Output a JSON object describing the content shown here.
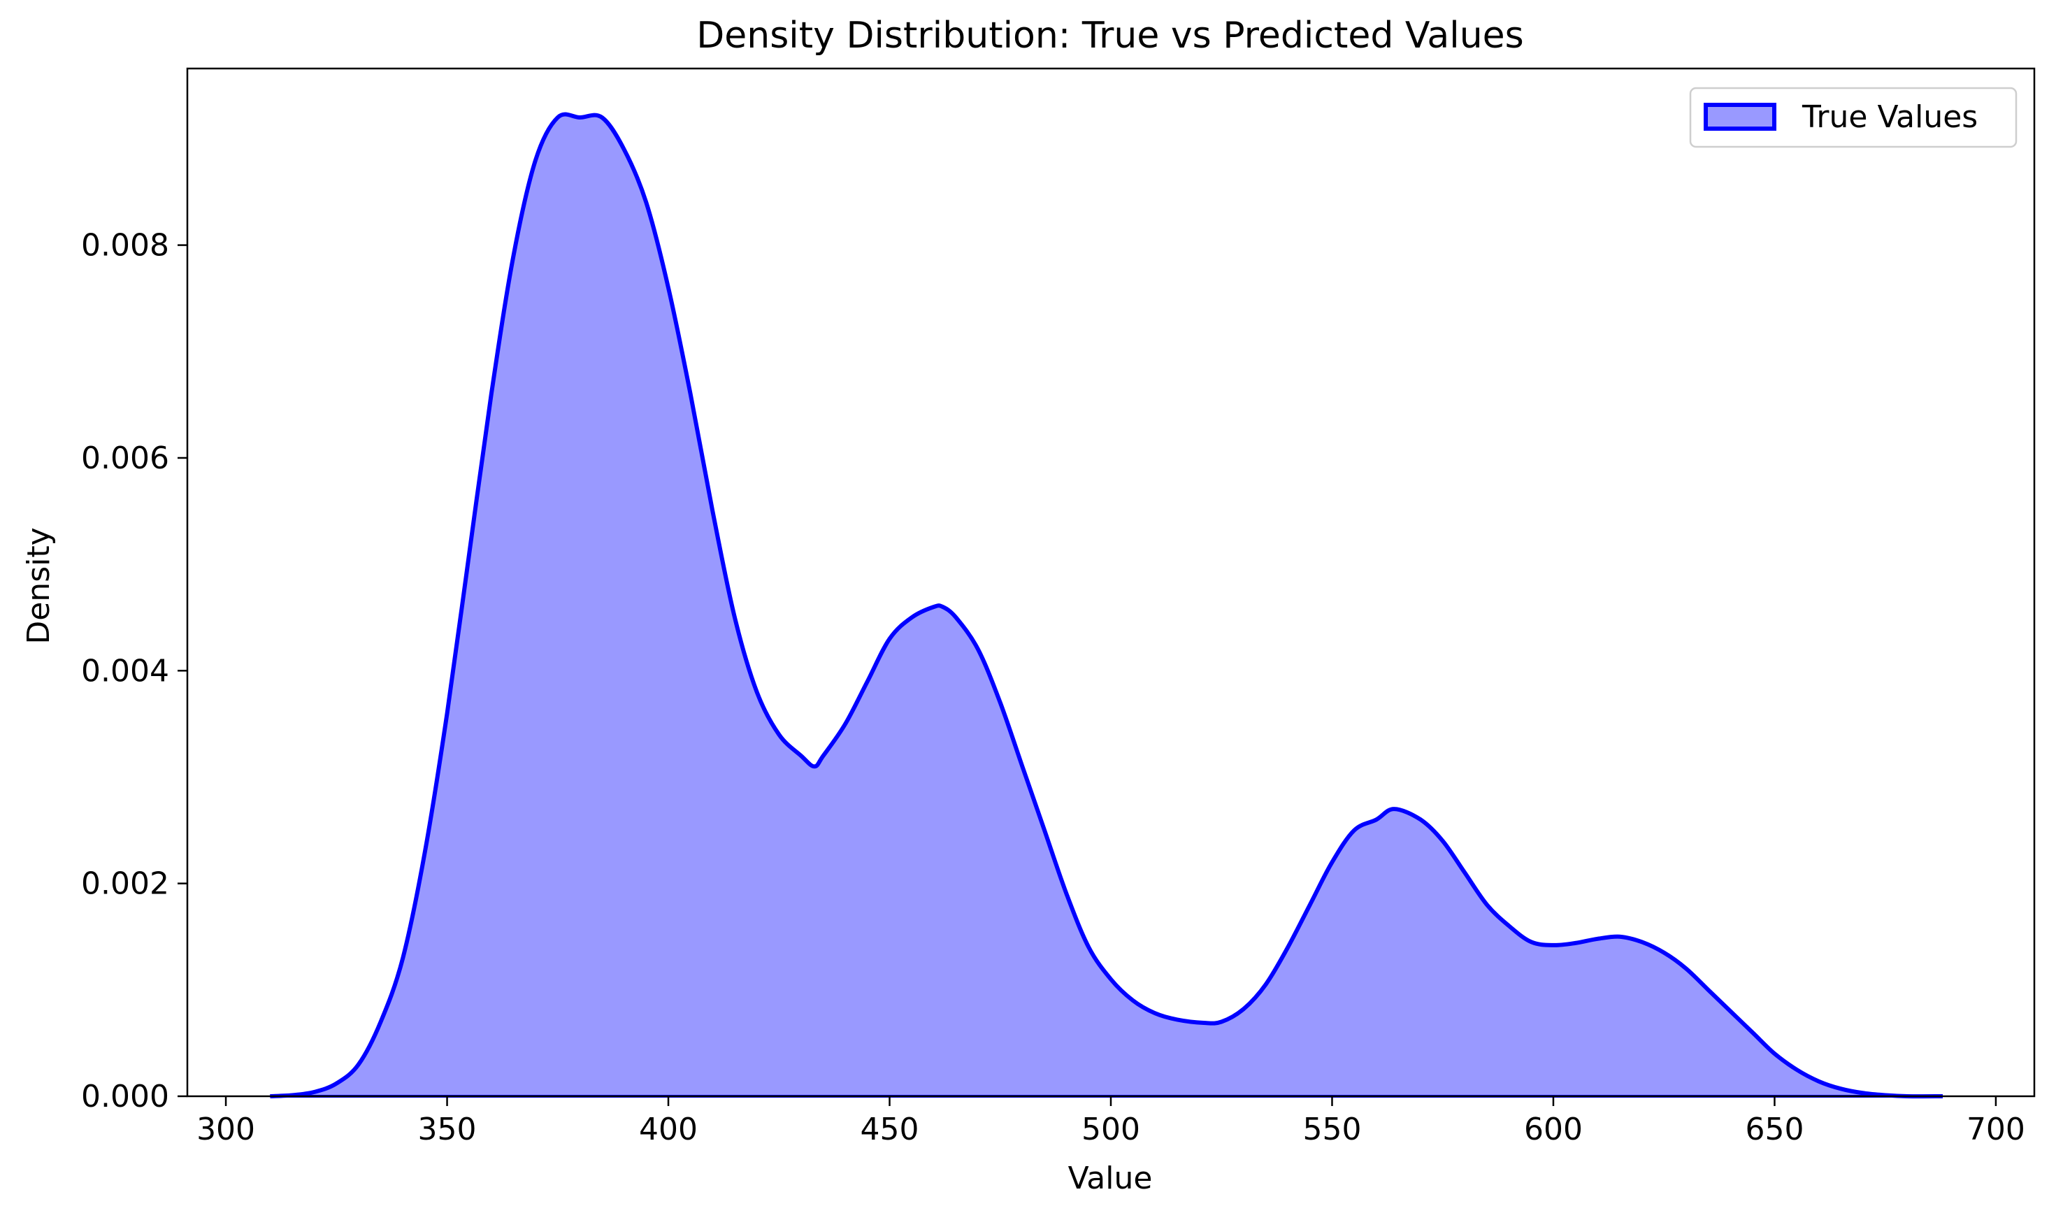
{
  "chart_data": {
    "type": "area",
    "title": "Density Distribution: True vs Predicted Values",
    "xlabel": "Value",
    "ylabel": "Density",
    "xlim": [
      291.3,
      708.7
    ],
    "ylim": [
      0,
      0.00966
    ],
    "x_ticks": [
      300,
      350,
      400,
      450,
      500,
      550,
      600,
      650,
      700
    ],
    "x_tick_labels": [
      "300",
      "350",
      "400",
      "450",
      "500",
      "550",
      "600",
      "650",
      "700"
    ],
    "y_ticks": [
      0,
      0.002,
      0.004,
      0.006,
      0.008
    ],
    "y_tick_labels": [
      "0.000",
      "0.002",
      "0.004",
      "0.006",
      "0.008"
    ],
    "grid": false,
    "legend_position": "top-right",
    "series": [
      {
        "name": "True Values",
        "stroke_color": "#0000ff",
        "fill_color": "#9999ff",
        "x": [
          310,
          315,
          320,
          325,
          330,
          335,
          340,
          345,
          350,
          355,
          360,
          365,
          370,
          375,
          380,
          385,
          390,
          395,
          400,
          405,
          410,
          415,
          420,
          425,
          430,
          433,
          435,
          440,
          445,
          450,
          455,
          460,
          462,
          465,
          470,
          475,
          480,
          485,
          490,
          495,
          500,
          505,
          510,
          515,
          521,
          525,
          530,
          535,
          540,
          545,
          550,
          555,
          560,
          564,
          570,
          575,
          580,
          585,
          590,
          595,
          600,
          605,
          610,
          615,
          620,
          625,
          630,
          635,
          640,
          645,
          650,
          655,
          660,
          665,
          670,
          675,
          680,
          688
        ],
        "y": [
          0.0,
          1e-05,
          4e-05,
          0.00012,
          0.0003,
          0.0007,
          0.0013,
          0.0023,
          0.0036,
          0.0051,
          0.0066,
          0.0079,
          0.0088,
          0.0092,
          0.0092,
          0.0092,
          0.0089,
          0.0084,
          0.0076,
          0.0066,
          0.0055,
          0.0045,
          0.0038,
          0.0034,
          0.0032,
          0.0031,
          0.0032,
          0.0035,
          0.0039,
          0.0043,
          0.0045,
          0.0046,
          0.0046,
          0.0045,
          0.0042,
          0.0037,
          0.0031,
          0.0025,
          0.0019,
          0.0014,
          0.0011,
          0.0009,
          0.00078,
          0.00072,
          0.00069,
          0.0007,
          0.00082,
          0.00105,
          0.0014,
          0.0018,
          0.0022,
          0.0025,
          0.0026,
          0.0027,
          0.0026,
          0.0024,
          0.0021,
          0.0018,
          0.0016,
          0.00145,
          0.00142,
          0.00144,
          0.00148,
          0.0015,
          0.00145,
          0.00135,
          0.0012,
          0.001,
          0.0008,
          0.0006,
          0.0004,
          0.00025,
          0.00014,
          7e-05,
          3e-05,
          1e-05,
          0.0,
          0.0
        ]
      }
    ]
  }
}
